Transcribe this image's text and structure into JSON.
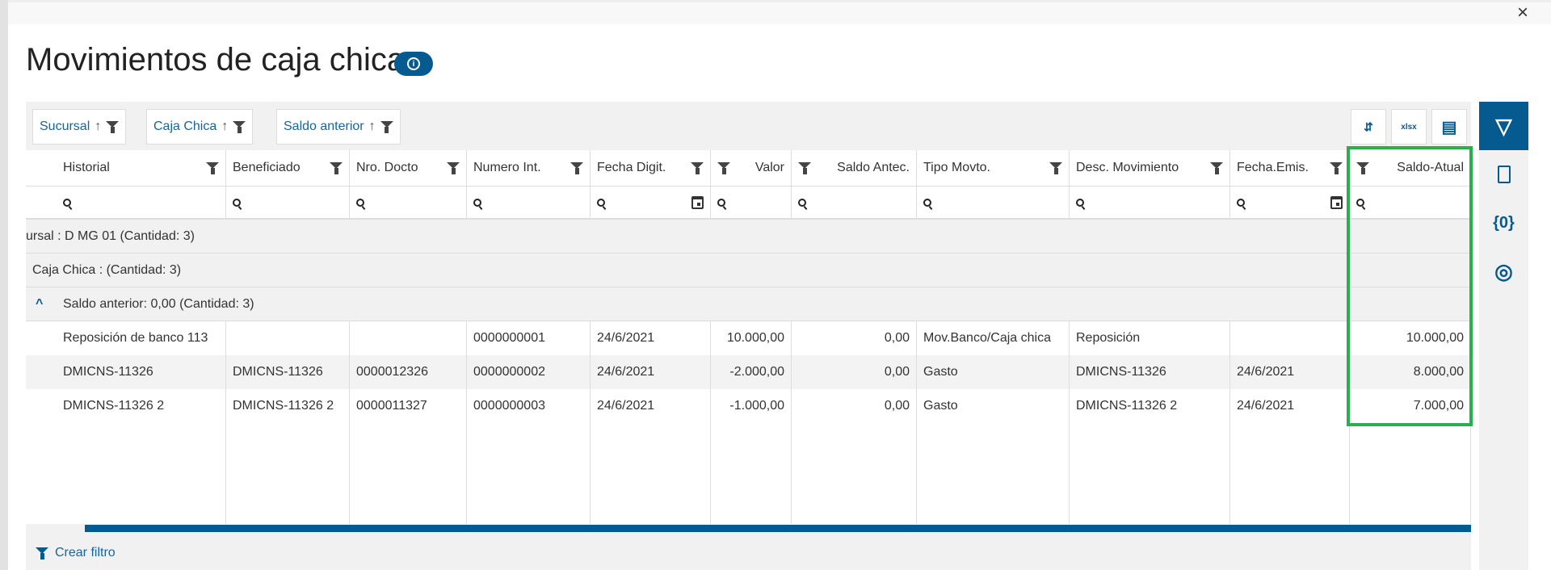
{
  "title": "Movimientos de caja chica",
  "close_label": "×",
  "groupings": [
    {
      "label": "Sucursal"
    },
    {
      "label": "Caja Chica"
    },
    {
      "label": "Saldo anterior"
    }
  ],
  "toolbar": {
    "collapse_icon": "⇵",
    "export_icon": "xlsx",
    "columns_icon": "▤"
  },
  "columns": [
    "Historial",
    "Beneficiado",
    "Nro. Docto",
    "Numero Int.",
    "Fecha Digit.",
    "Valor",
    "Saldo Antec.",
    "Tipo Movto.",
    "Desc. Movimiento",
    "Fecha.Emis.",
    "Saldo-Atual"
  ],
  "groups": [
    "ursal : D MG 01 (Cantidad: 3)",
    "Caja Chica : (Cantidad: 3)",
    "Saldo anterior: 0,00 (Cantidad: 3)"
  ],
  "rows": [
    [
      "Reposición de banco 113",
      "",
      "",
      "0000000001",
      "24/6/2021",
      "10.000,00",
      "0,00",
      "Mov.Banco/Caja chica",
      "Reposición",
      "",
      "10.000,00"
    ],
    [
      "DMICNS-11326",
      "DMICNS-11326",
      "0000012326",
      "0000000002",
      "24/6/2021",
      "-2.000,00",
      "0,00",
      "Gasto",
      "DMICNS-11326",
      "24/6/2021",
      "8.000,00"
    ],
    [
      "DMICNS-11326 2",
      "DMICNS-11326 2",
      "0000011327",
      "0000000003",
      "24/6/2021",
      "-1.000,00",
      "0,00",
      "Gasto",
      "DMICNS-11326 2",
      "24/6/2021",
      "7.000,00"
    ]
  ],
  "footer": {
    "create_filter": "Crear filtro"
  },
  "sidebar": [
    "filter-icon",
    "clipboard-icon",
    "variables-icon",
    "eye-icon"
  ],
  "sidebar_glyphs": {
    "variables": "{0}",
    "eye": "◎",
    "clipboard": "📋"
  },
  "colors": {
    "accent": "#055b8f",
    "highlight": "#27b04b"
  }
}
